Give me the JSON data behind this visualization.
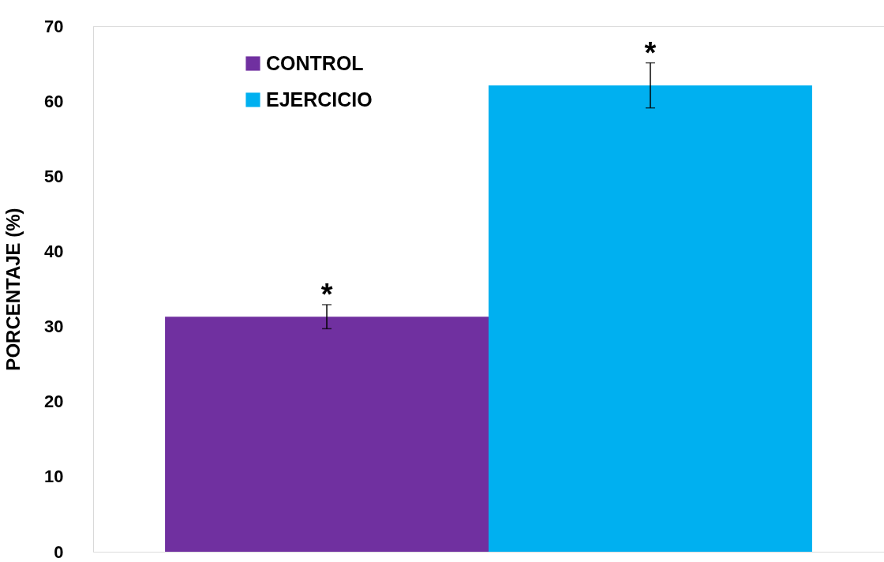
{
  "chart_data": {
    "type": "bar",
    "ylabel": "PORCENTAJE (%)",
    "categories": [
      null
    ],
    "series": [
      {
        "name": "CONTROL",
        "color": "#7030a0",
        "values": [
          31.3
        ],
        "errors": [
          1.6
        ]
      },
      {
        "name": "EJERCICIO",
        "color": "#00b0f0",
        "values": [
          62.1
        ],
        "errors": [
          3.0
        ]
      }
    ],
    "ylim": [
      0,
      70
    ],
    "yticks": [
      0,
      10,
      20,
      30,
      40,
      50,
      60,
      70
    ],
    "annotations": [
      "*",
      "*"
    ],
    "grid": false,
    "legend": "top left",
    "tick_labels": "y"
  }
}
